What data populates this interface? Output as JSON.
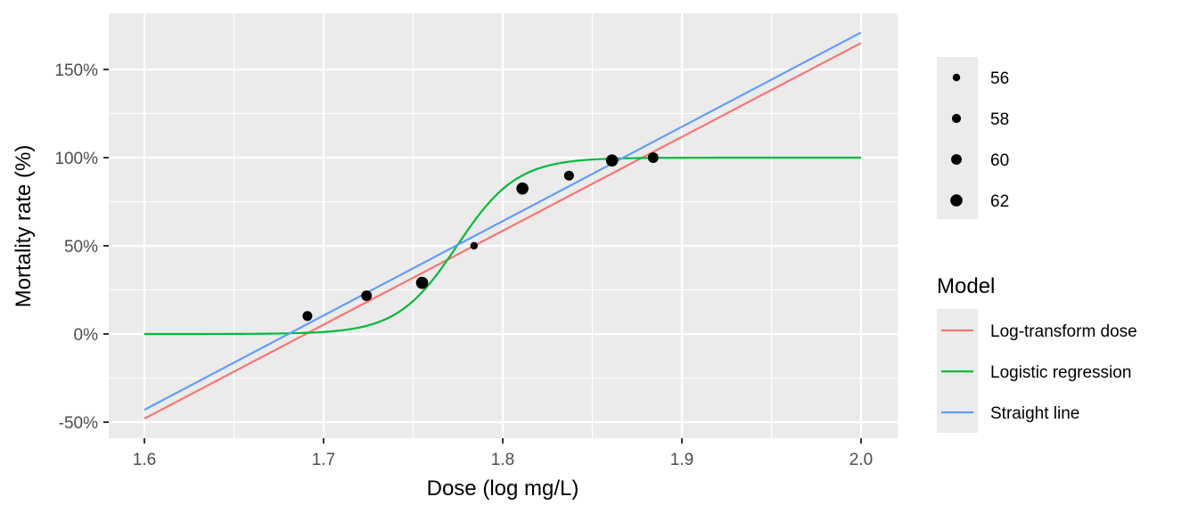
{
  "chart_data": {
    "type": "scatter",
    "xlabel": "Dose (log mg/L)",
    "ylabel": "Mortality rate (%)",
    "xlim": [
      1.6,
      2.0
    ],
    "ylim": [
      -0.5,
      1.6
    ],
    "x_ticks": [
      1.6,
      1.7,
      1.8,
      1.9,
      2.0
    ],
    "x_tick_labels": [
      "1.6",
      "1.7",
      "1.8",
      "1.9",
      "2.0"
    ],
    "y_ticks": [
      -0.5,
      0,
      0.5,
      1,
      1.5
    ],
    "y_tick_labels": [
      "-50%",
      "0%",
      "50%",
      "100%",
      "150%"
    ],
    "grid": true,
    "points": [
      {
        "x": 1.691,
        "y": 0.102,
        "size": 59
      },
      {
        "x": 1.724,
        "y": 0.217,
        "size": 60
      },
      {
        "x": 1.755,
        "y": 0.29,
        "size": 62
      },
      {
        "x": 1.784,
        "y": 0.5,
        "size": 56
      },
      {
        "x": 1.811,
        "y": 0.825,
        "size": 63
      },
      {
        "x": 1.837,
        "y": 0.898,
        "size": 59
      },
      {
        "x": 1.861,
        "y": 0.984,
        "size": 62
      },
      {
        "x": 1.884,
        "y": 1.0,
        "size": 60
      }
    ],
    "size_legend": {
      "labels": [
        "56",
        "58",
        "60",
        "62"
      ],
      "values": [
        56,
        58,
        60,
        62
      ]
    },
    "color_legend": {
      "title": "Model",
      "placement": "right",
      "series": [
        {
          "name": "Log-transform dose",
          "color": "#F8766D"
        },
        {
          "name": "Logistic regression",
          "color": "#00BA38"
        },
        {
          "name": "Straight line",
          "color": "#619CFF"
        }
      ]
    },
    "lines": [
      {
        "name": "Log-transform dose",
        "type": "linear",
        "x": [
          1.6,
          2.0
        ],
        "y": [
          -0.48,
          1.65
        ]
      },
      {
        "name": "Logistic regression",
        "type": "logistic",
        "x_range": [
          1.6,
          2.0
        ],
        "midpoint": 1.7745,
        "slope": 60
      },
      {
        "name": "Straight line",
        "type": "linear",
        "x": [
          1.6,
          2.0
        ],
        "y": [
          -0.43,
          1.71
        ]
      }
    ]
  }
}
